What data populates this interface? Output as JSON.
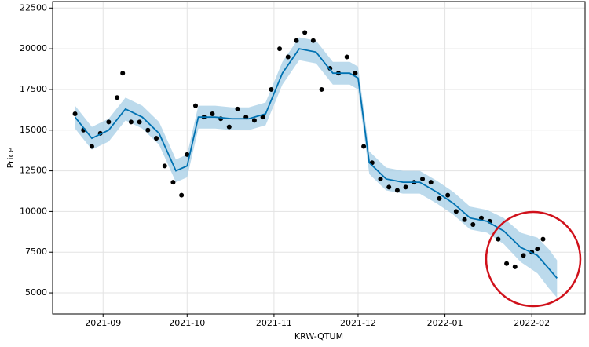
{
  "chart_data": {
    "type": "line",
    "x_label": "KRW-QTUM",
    "y_label": "Price",
    "xlim": [
      "2021-08-14",
      "2022-02-20"
    ],
    "ylim": [
      3700,
      22900
    ],
    "xticks": [
      {
        "value": "2021-09-01",
        "label": "2021-09"
      },
      {
        "value": "2021-10-01",
        "label": "2021-10"
      },
      {
        "value": "2021-11-01",
        "label": "2021-11"
      },
      {
        "value": "2021-12-01",
        "label": "2021-12"
      },
      {
        "value": "2022-01-01",
        "label": "2022-01"
      },
      {
        "value": "2022-02-01",
        "label": "2022-02"
      }
    ],
    "yticks": [
      5000,
      7500,
      10000,
      12500,
      15000,
      17500,
      20000,
      22500
    ],
    "grid": true,
    "observed": {
      "color": "#000000",
      "x": [
        "2021-08-22",
        "2021-08-25",
        "2021-08-28",
        "2021-08-31",
        "2021-09-03",
        "2021-09-06",
        "2021-09-08",
        "2021-09-11",
        "2021-09-14",
        "2021-09-17",
        "2021-09-20",
        "2021-09-23",
        "2021-09-26",
        "2021-09-29",
        "2021-10-01",
        "2021-10-04",
        "2021-10-07",
        "2021-10-10",
        "2021-10-13",
        "2021-10-16",
        "2021-10-19",
        "2021-10-22",
        "2021-10-25",
        "2021-10-28",
        "2021-10-31",
        "2021-11-03",
        "2021-11-06",
        "2021-11-09",
        "2021-11-12",
        "2021-11-15",
        "2021-11-18",
        "2021-11-21",
        "2021-11-24",
        "2021-11-27",
        "2021-11-30",
        "2021-12-03",
        "2021-12-06",
        "2021-12-09",
        "2021-12-12",
        "2021-12-15",
        "2021-12-18",
        "2021-12-21",
        "2021-12-24",
        "2021-12-27",
        "2021-12-30",
        "2022-01-02",
        "2022-01-05",
        "2022-01-08",
        "2022-01-11",
        "2022-01-14",
        "2022-01-17",
        "2022-01-20",
        "2022-01-23",
        "2022-01-26",
        "2022-01-29",
        "2022-02-01",
        "2022-02-03",
        "2022-02-05"
      ],
      "values": [
        16000,
        15000,
        14000,
        14800,
        15500,
        17000,
        18500,
        15500,
        15500,
        15000,
        14500,
        12800,
        11800,
        11000,
        13500,
        16500,
        15800,
        16000,
        15700,
        15200,
        16300,
        15800,
        15600,
        15800,
        17500,
        20000,
        19500,
        20500,
        21000,
        20500,
        17500,
        18800,
        18500,
        19500,
        18500,
        14000,
        13000,
        12000,
        11500,
        11300,
        11500,
        11800,
        12000,
        11800,
        10800,
        11000,
        10000,
        9500,
        9200,
        9600,
        9400,
        8300,
        6800,
        6600,
        7300,
        7500,
        7700,
        8300
      ]
    },
    "forecast": {
      "color": "#0072b2",
      "band_color": "#a6cde6",
      "x": [
        "2021-08-22",
        "2021-08-28",
        "2021-09-03",
        "2021-09-09",
        "2021-09-15",
        "2021-09-21",
        "2021-09-27",
        "2021-10-01",
        "2021-10-05",
        "2021-10-11",
        "2021-10-17",
        "2021-10-23",
        "2021-10-29",
        "2021-11-04",
        "2021-11-10",
        "2021-11-16",
        "2021-11-22",
        "2021-11-28",
        "2021-12-01",
        "2021-12-05",
        "2021-12-11",
        "2021-12-17",
        "2021-12-23",
        "2021-12-29",
        "2022-01-04",
        "2022-01-10",
        "2022-01-16",
        "2022-01-22",
        "2022-01-28",
        "2022-02-03",
        "2022-02-07",
        "2022-02-10"
      ],
      "values": [
        15800,
        14500,
        15000,
        16300,
        15800,
        14800,
        12500,
        12800,
        15800,
        15800,
        15700,
        15700,
        16000,
        18500,
        20000,
        19800,
        18500,
        18500,
        18200,
        13000,
        12000,
        11800,
        11800,
        11200,
        10500,
        9600,
        9400,
        8800,
        7800,
        7300,
        6500,
        5900
      ],
      "lower": [
        15100,
        13800,
        14300,
        15600,
        15100,
        14100,
        11800,
        12100,
        15100,
        15100,
        15000,
        15000,
        15300,
        17800,
        19300,
        19100,
        17800,
        17800,
        17500,
        12300,
        11300,
        11100,
        11100,
        10500,
        9800,
        8900,
        8700,
        8000,
        6900,
        6200,
        5300,
        4700
      ],
      "upper": [
        16500,
        15200,
        15700,
        17000,
        16500,
        15500,
        13200,
        13500,
        16500,
        16500,
        16400,
        16400,
        16700,
        19200,
        20700,
        20500,
        19200,
        19200,
        18900,
        13700,
        12700,
        12500,
        12500,
        11900,
        11200,
        10300,
        10100,
        9600,
        8700,
        8400,
        7700,
        7000
      ]
    }
  }
}
